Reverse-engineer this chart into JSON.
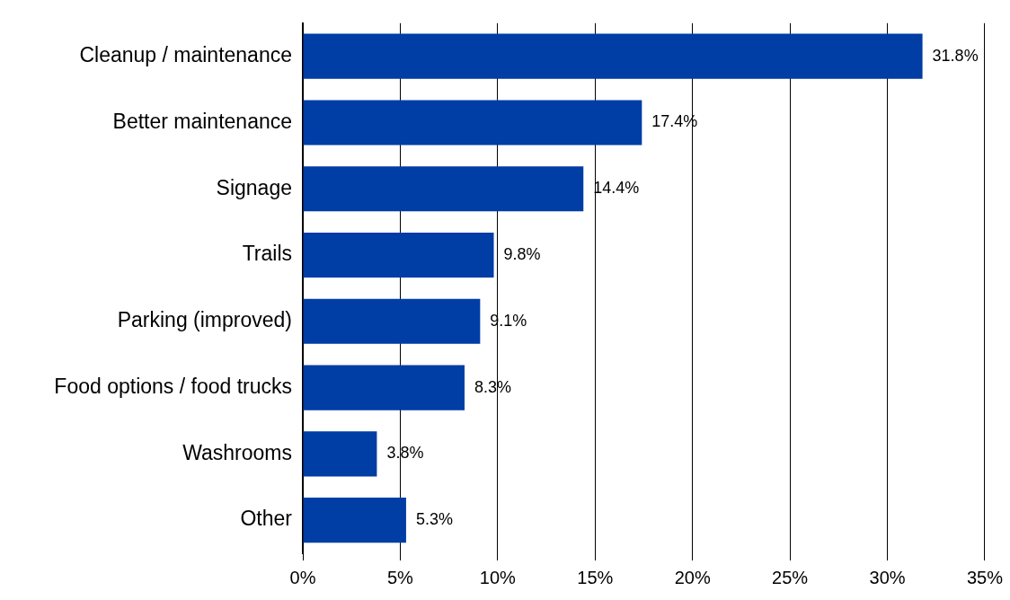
{
  "chart_data": {
    "type": "bar",
    "orientation": "horizontal",
    "categories": [
      "Cleanup / maintenance",
      "Better maintenance",
      "Signage",
      "Trails",
      "Parking (improved)",
      "Food options / food trucks",
      "Washrooms",
      "Other"
    ],
    "values": [
      31.8,
      17.4,
      14.4,
      9.8,
      9.1,
      8.3,
      3.8,
      5.3
    ],
    "value_labels": [
      "31.8%",
      "17.4%",
      "14.4%",
      "9.8%",
      "9.1%",
      "8.3%",
      "3.8%",
      "5.3%"
    ],
    "color": "#003da5",
    "xlim": [
      0,
      35
    ],
    "xticks": [
      {
        "value": 0,
        "label": "0%"
      },
      {
        "value": 5,
        "label": "5%"
      },
      {
        "value": 10,
        "label": "10%"
      },
      {
        "value": 15,
        "label": "15%"
      },
      {
        "value": 20,
        "label": "20%"
      },
      {
        "value": 25,
        "label": "25%"
      },
      {
        "value": 30,
        "label": "30%"
      },
      {
        "value": 35,
        "label": "35%"
      }
    ],
    "grid": "x",
    "legend": false
  }
}
